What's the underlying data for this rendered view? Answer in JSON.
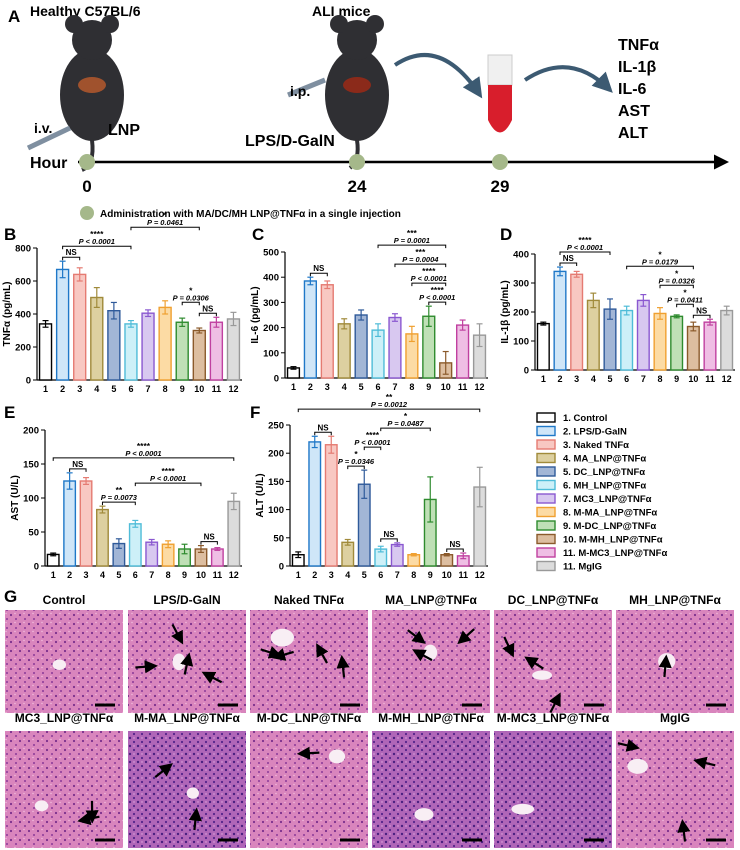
{
  "panel_a": {
    "label": "A",
    "healthy": "Healthy C57BL/6",
    "ali": "ALI mice",
    "iv": "i.v.",
    "lnp": "LNP",
    "hour": "Hour",
    "ip": "i.p.",
    "lps": "LPS/D-GalN",
    "timepoints": [
      0,
      24,
      29
    ],
    "readouts": [
      "TNFα",
      "IL-1β",
      "IL-6",
      "AST",
      "ALT"
    ],
    "note": "Administration with MA/DC/MH LNP@TNFα in a single injection"
  },
  "groups": [
    {
      "name": "1. Control",
      "color": "#ffffff",
      "edge": "#000000"
    },
    {
      "name": "2. LPS/D-GalN",
      "color": "#cfe6f8",
      "edge": "#1f78c8"
    },
    {
      "name": "3. Naked TNFα",
      "color": "#f8c8c2",
      "edge": "#e57b72"
    },
    {
      "name": "4. MA_LNP@TNFα",
      "color": "#ddd0a0",
      "edge": "#a08a3a"
    },
    {
      "name": "5. DC_LNP@TNFα",
      "color": "#a2b6d6",
      "edge": "#2f5a9a"
    },
    {
      "name": "6. MH_LNP@TNFα",
      "color": "#cdf0f8",
      "edge": "#4fbcd8"
    },
    {
      "name": "7. MC3_LNP@TNFα",
      "color": "#d8c8f0",
      "edge": "#8a58d0"
    },
    {
      "name": "8. M-MA_LNP@TNFα",
      "color": "#fcdba4",
      "edge": "#f0a030"
    },
    {
      "name": "9. M-DC_LNP@TNFα",
      "color": "#bfe0b6",
      "edge": "#2e8b2e"
    },
    {
      "name": "10. M-MH_LNP@TNFα",
      "color": "#ddbea0",
      "edge": "#8b5a2b"
    },
    {
      "name": "11. M-MC3_LNP@TNFα",
      "color": "#efbee4",
      "edge": "#c040a0"
    },
    {
      "name": "11. MgIG",
      "color": "#dcdcdc",
      "edge": "#999999"
    }
  ],
  "chart_data": [
    {
      "type": "bar",
      "panel": "B",
      "y_label": "TNFα (pg/mL)",
      "categories": [
        "1",
        "2",
        "3",
        "4",
        "5",
        "6",
        "7",
        "8",
        "9",
        "10",
        "11",
        "12"
      ],
      "values": [
        340,
        670,
        640,
        500,
        420,
        340,
        405,
        440,
        350,
        300,
        350,
        370
      ],
      "errors": [
        20,
        50,
        40,
        60,
        50,
        20,
        20,
        40,
        25,
        15,
        30,
        40
      ],
      "ylim": [
        0,
        800
      ],
      "yticks": [
        0,
        200,
        400,
        600,
        800
      ],
      "annotations": [
        {
          "text": "NS",
          "between": [
            "2",
            "3"
          ]
        },
        {
          "stars": "****",
          "p": "P < 0.0001",
          "between": [
            "2",
            "6"
          ]
        },
        {
          "text": "NS",
          "between": [
            "10",
            "11"
          ]
        },
        {
          "stars": "*",
          "p": "P = 0.0306",
          "between": [
            "9",
            "10"
          ]
        },
        {
          "stars": "*",
          "p": "P = 0.0461",
          "between": [
            "6",
            "10"
          ]
        }
      ]
    },
    {
      "type": "bar",
      "panel": "C",
      "y_label": "IL-6 (pg/mL)",
      "categories": [
        "1",
        "2",
        "3",
        "4",
        "5",
        "6",
        "7",
        "8",
        "9",
        "10",
        "11",
        "12"
      ],
      "values": [
        40,
        385,
        370,
        215,
        250,
        190,
        240,
        175,
        245,
        60,
        210,
        170
      ],
      "errors": [
        5,
        15,
        15,
        20,
        20,
        25,
        15,
        30,
        40,
        45,
        20,
        45
      ],
      "ylim": [
        0,
        500
      ],
      "yticks": [
        0,
        100,
        200,
        300,
        400,
        500
      ],
      "annotations": [
        {
          "text": "NS",
          "between": [
            "2",
            "3"
          ]
        },
        {
          "stars": "****",
          "p": "P < 0.0001",
          "between": [
            "9",
            "10"
          ]
        },
        {
          "stars": "****",
          "p": "P < 0.0001",
          "between": [
            "8",
            "10"
          ]
        },
        {
          "stars": "***",
          "p": "P = 0.0004",
          "between": [
            "7",
            "10"
          ]
        },
        {
          "stars": "***",
          "p": "P = 0.0001",
          "between": [
            "6",
            "10"
          ]
        }
      ]
    },
    {
      "type": "bar",
      "panel": "D",
      "y_label": "IL-1β (pg/mL)",
      "categories": [
        "1",
        "2",
        "3",
        "4",
        "5",
        "6",
        "7",
        "8",
        "9",
        "10",
        "11",
        "12"
      ],
      "values": [
        160,
        340,
        330,
        240,
        210,
        205,
        240,
        195,
        185,
        150,
        165,
        205
      ],
      "errors": [
        5,
        15,
        10,
        25,
        35,
        15,
        20,
        20,
        5,
        15,
        10,
        15
      ],
      "ylim": [
        0,
        400
      ],
      "yticks": [
        0,
        100,
        200,
        300,
        400
      ],
      "annotations": [
        {
          "text": "NS",
          "between": [
            "2",
            "3"
          ]
        },
        {
          "stars": "****",
          "p": "P < 0.0001",
          "between": [
            "2",
            "5"
          ]
        },
        {
          "text": "NS",
          "between": [
            "10",
            "11"
          ]
        },
        {
          "stars": "*",
          "p": "P = 0.0411",
          "between": [
            "9",
            "10"
          ]
        },
        {
          "stars": "*",
          "p": "P = 0.0326",
          "between": [
            "8",
            "10"
          ]
        },
        {
          "stars": "*",
          "p": "P = 0.0179",
          "between": [
            "6",
            "10"
          ]
        }
      ]
    },
    {
      "type": "bar",
      "panel": "E",
      "y_label": "AST (U/L)",
      "categories": [
        "1",
        "2",
        "3",
        "4",
        "5",
        "6",
        "7",
        "8",
        "9",
        "10",
        "11",
        "12"
      ],
      "values": [
        17,
        125,
        125,
        83,
        33,
        62,
        35,
        32,
        25,
        25,
        25,
        95
      ],
      "errors": [
        2,
        12,
        5,
        5,
        7,
        5,
        4,
        5,
        7,
        5,
        2,
        12
      ],
      "ylim": [
        0,
        200
      ],
      "yticks": [
        0,
        50,
        100,
        150,
        200
      ],
      "annotations": [
        {
          "text": "NS",
          "between": [
            "2",
            "3"
          ]
        },
        {
          "stars": "**",
          "p": "P = 0.0073",
          "between": [
            "4",
            "6"
          ]
        },
        {
          "text": "NS",
          "between": [
            "10",
            "11"
          ]
        },
        {
          "stars": "****",
          "p": "P < 0.0001",
          "between": [
            "6",
            "10"
          ]
        },
        {
          "stars": "****",
          "p": "P < 0.0001",
          "between": [
            "1",
            "12"
          ]
        }
      ]
    },
    {
      "type": "bar",
      "panel": "F",
      "y_label": "ALT (U/L)",
      "categories": [
        "1",
        "2",
        "3",
        "4",
        "5",
        "6",
        "7",
        "8",
        "9",
        "10",
        "11",
        "12"
      ],
      "values": [
        20,
        220,
        215,
        42,
        145,
        30,
        38,
        20,
        118,
        20,
        18,
        140
      ],
      "errors": [
        5,
        10,
        15,
        5,
        25,
        5,
        3,
        2,
        40,
        2,
        5,
        35
      ],
      "ylim": [
        0,
        250
      ],
      "yticks": [
        0,
        50,
        100,
        150,
        200,
        250
      ],
      "annotations": [
        {
          "text": "NS",
          "between": [
            "2",
            "3"
          ]
        },
        {
          "text": "NS",
          "between": [
            "6",
            "7"
          ]
        },
        {
          "text": "NS",
          "between": [
            "10",
            "11"
          ]
        },
        {
          "stars": "*",
          "p": "P = 0.0346",
          "between": [
            "4",
            "5"
          ]
        },
        {
          "stars": "****",
          "p": "P < 0.0001",
          "between": [
            "5",
            "6"
          ]
        },
        {
          "stars": "*",
          "p": "P = 0.0487",
          "between": [
            "6",
            "9"
          ]
        },
        {
          "stars": "**",
          "p": "P = 0.0012",
          "between": [
            "1",
            "12"
          ]
        }
      ]
    }
  ],
  "panel_g": {
    "label": "G",
    "images": [
      "Control",
      "LPS/D-GalN",
      "Naked TNFα",
      "MA_LNP@TNFα",
      "DC_LNP@TNFα",
      "MH_LNP@TNFα",
      "MC3_LNP@TNFα",
      "M-MA_LNP@TNFα",
      "M-DC_LNP@TNFα",
      "M-MH_LNP@TNFα",
      "M-MC3_LNP@TNFα",
      "MgIG"
    ]
  }
}
